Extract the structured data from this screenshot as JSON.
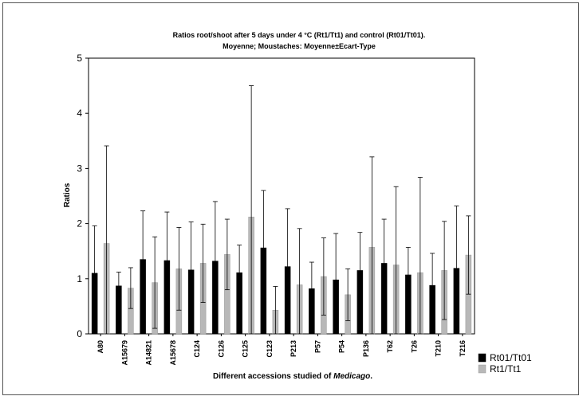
{
  "chart_data": {
    "type": "bar",
    "title": "Ratios root/shoot after 5 days under 4 °C (Rt1/Tt1) and control (Rt01/Tt01).",
    "subtitle": "Moyenne; Moustaches: Moyenne±Ecart-Type",
    "xlabel_prefix": "Different accessions studied of ",
    "xlabel_italic": "Medicago",
    "xlabel_suffix": ".",
    "ylabel": "Ratios",
    "ylim": [
      0,
      5
    ],
    "yticks": [
      "0",
      "1",
      "2",
      "3",
      "4",
      "5"
    ],
    "categories": [
      "A80",
      "A15679",
      "A14821",
      "A15678",
      "C124",
      "C126",
      "C125",
      "C123",
      "P213",
      "P57",
      "P54",
      "P136",
      "T62",
      "T26",
      "T210",
      "T216"
    ],
    "series": [
      {
        "name": "Rt01/Tt01",
        "color": "#000000",
        "values": [
          1.1,
          0.87,
          1.35,
          1.33,
          1.16,
          1.32,
          1.11,
          1.56,
          1.22,
          0.82,
          0.98,
          1.15,
          1.28,
          1.07,
          0.88,
          1.19
        ],
        "errors": [
          0.86,
          0.25,
          0.88,
          0.88,
          0.87,
          1.08,
          0.5,
          1.04,
          1.05,
          0.48,
          0.84,
          0.69,
          0.8,
          0.5,
          0.58,
          1.13
        ]
      },
      {
        "name": "Rt1/Tt1",
        "color": "#b8b8b8",
        "values": [
          1.64,
          0.83,
          0.93,
          1.18,
          1.28,
          1.44,
          2.12,
          0.43,
          0.89,
          1.04,
          0.71,
          1.57,
          1.25,
          1.11,
          1.15,
          1.43
        ],
        "errors": [
          1.77,
          0.37,
          0.83,
          0.75,
          0.71,
          0.64,
          2.38,
          0.43,
          1.02,
          0.7,
          0.47,
          1.64,
          1.42,
          1.73,
          0.89,
          0.71
        ]
      }
    ],
    "legend": "bottom-right",
    "grid": false
  }
}
